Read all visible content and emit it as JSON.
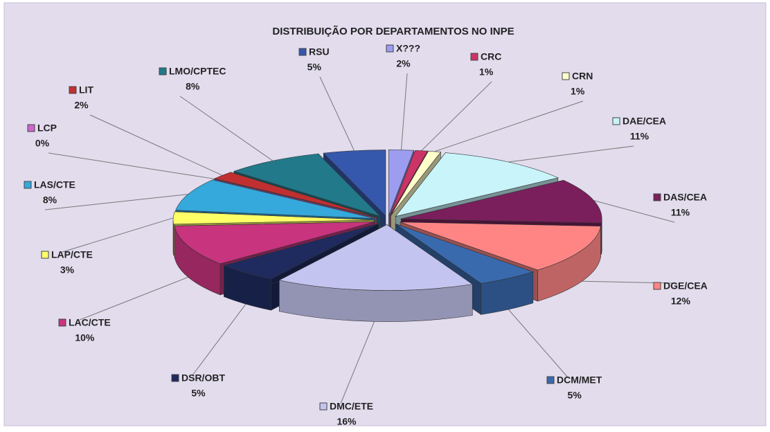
{
  "chart_data": {
    "type": "pie",
    "title": "DISTRIBUIÇÃO  POR DEPARTAMENTOS NO INPE",
    "categories": [
      "X???",
      "CRC",
      "CRN",
      "DAE/CEA",
      "DAS/CEA",
      "DGE/CEA",
      "DCM/MET",
      "DMC/ETE",
      "DSR/OBT",
      "LAC/CTE",
      "LAP/CTE",
      "LAS/CTE",
      "LCP",
      "LIT",
      "LMO/CPTEC",
      "RSU"
    ],
    "values": [
      2,
      1,
      1,
      11,
      11,
      12,
      5,
      16,
      5,
      10,
      3,
      8,
      0,
      2,
      8,
      5
    ],
    "value_labels": [
      "2%",
      "1%",
      "1%",
      "11%",
      "11%",
      "12%",
      "5%",
      "16%",
      "5%",
      "10%",
      "3%",
      "8%",
      "0%",
      "2%",
      "8%",
      "5%"
    ],
    "colors": [
      "#9c9cf0",
      "#cc3366",
      "#ffffcc",
      "#c8f4fa",
      "#7a1f5c",
      "#ff8585",
      "#3a6aae",
      "#c4c4f0",
      "#1f2a5e",
      "#c8347e",
      "#ffff66",
      "#35a8dc",
      "#cc66cc",
      "#c03030",
      "#22798a",
      "#3658ac"
    ]
  }
}
